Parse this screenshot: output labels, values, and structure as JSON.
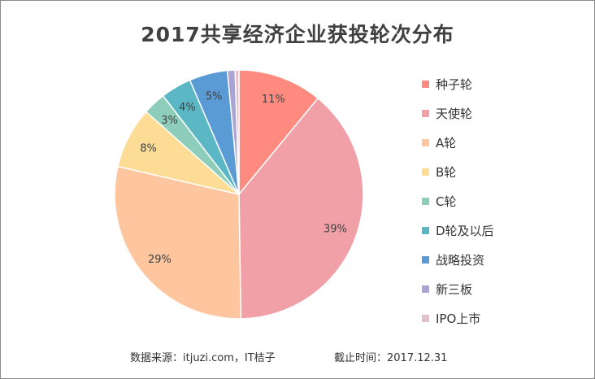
{
  "chart_data": {
    "type": "pie",
    "title": "2017共享经济企业获投轮次分布",
    "start_angle_deg": 0,
    "slices": [
      {
        "label": "种子轮",
        "value": 11,
        "display": "11%",
        "color": "#ff8a80"
      },
      {
        "label": "天使轮",
        "value": 39,
        "display": "39%",
        "color": "#f0a0a6"
      },
      {
        "label": "A轮",
        "value": 29,
        "display": "29%",
        "color": "#fdc69f"
      },
      {
        "label": "B轮",
        "value": 8,
        "display": "8%",
        "color": "#fddc96"
      },
      {
        "label": "C轮",
        "value": 3,
        "display": "3%",
        "color": "#8dcdb9"
      },
      {
        "label": "D轮及以后",
        "value": 4,
        "display": "4%",
        "color": "#5cb7c5"
      },
      {
        "label": "战略投资",
        "value": 5,
        "display": "5%",
        "color": "#5b9bd5"
      },
      {
        "label": "新三板",
        "value": 1,
        "display": "",
        "color": "#a9a4d4"
      },
      {
        "label": "IPO上市",
        "value": 0.5,
        "display": "",
        "color": "#e2bfcc"
      }
    ]
  },
  "footer": {
    "source": "数据来源：itjuzi.com，IT桔子",
    "cutoff": "截止时间：2017.12.31"
  }
}
